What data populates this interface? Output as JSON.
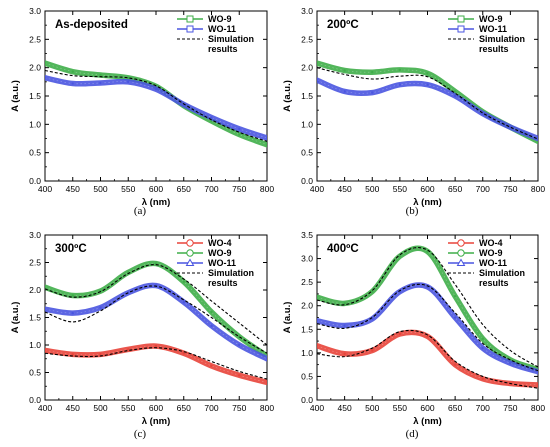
{
  "colors": {
    "WO-4": "#e8443a",
    "WO-9": "#3fae49",
    "WO-11": "#4a55e0",
    "sim": "#000000"
  },
  "chart_data": [
    {
      "type": "line",
      "caption": "(a)",
      "title": "As-deposited",
      "xlabel": "λ (nm)",
      "ylabel": "A (a.u.)",
      "xlim": [
        400,
        800
      ],
      "ylim": [
        0.0,
        3.0
      ],
      "xticks": [
        "400",
        "450",
        "500",
        "550",
        "600",
        "650",
        "700",
        "750",
        "800"
      ],
      "yticks": [
        "0.0",
        "0.5",
        "1.0",
        "1.5",
        "2.0",
        "2.5",
        "3.0"
      ],
      "legend_position": "top-right",
      "legend": [
        {
          "label": "WO-9",
          "key": "WO-9",
          "marker": "square"
        },
        {
          "label": "WO-11",
          "key": "WO-11",
          "marker": "square"
        },
        {
          "label": "Simulation results",
          "lines": [
            "Simulation",
            "results"
          ],
          "key": "sim",
          "marker": "dash"
        }
      ],
      "x": [
        400,
        450,
        500,
        550,
        600,
        650,
        700,
        750,
        800
      ],
      "series": [
        {
          "name": "WO-9",
          "key": "WO-9",
          "values": [
            2.08,
            1.93,
            1.87,
            1.82,
            1.67,
            1.33,
            1.06,
            0.82,
            0.64
          ]
        },
        {
          "name": "WO-11",
          "key": "WO-11",
          "values": [
            1.82,
            1.72,
            1.73,
            1.75,
            1.62,
            1.35,
            1.12,
            0.92,
            0.76
          ]
        },
        {
          "name": "Simulation results",
          "key": "sim",
          "dashed": true,
          "values": [
            1.95,
            1.86,
            1.84,
            1.82,
            1.68,
            1.36,
            1.08,
            0.86,
            0.7
          ]
        }
      ]
    },
    {
      "type": "line",
      "caption": "(b)",
      "title": "200ºC",
      "xlabel": "λ (nm)",
      "ylabel": "A (a.u.)",
      "xlim": [
        400,
        800
      ],
      "ylim": [
        0.0,
        3.0
      ],
      "xticks": [
        "400",
        "450",
        "500",
        "550",
        "600",
        "650",
        "700",
        "750",
        "800"
      ],
      "yticks": [
        "0.0",
        "0.5",
        "1.0",
        "1.5",
        "2.0",
        "2.5",
        "3.0"
      ],
      "legend_position": "top-right",
      "legend": [
        {
          "label": "WO-9",
          "key": "WO-9",
          "marker": "square"
        },
        {
          "label": "WO-11",
          "key": "WO-11",
          "marker": "square"
        },
        {
          "label": "Simulation results",
          "lines": [
            "Simulation",
            "results"
          ],
          "key": "sim",
          "marker": "dash"
        }
      ],
      "x": [
        400,
        450,
        500,
        550,
        600,
        650,
        700,
        750,
        800
      ],
      "series": [
        {
          "name": "WO-9",
          "key": "WO-9",
          "values": [
            2.08,
            1.95,
            1.92,
            1.96,
            1.9,
            1.58,
            1.22,
            0.95,
            0.7
          ]
        },
        {
          "name": "WO-11",
          "key": "WO-11",
          "values": [
            1.78,
            1.58,
            1.56,
            1.7,
            1.7,
            1.5,
            1.19,
            0.95,
            0.75
          ]
        },
        {
          "name": "Simulation results",
          "key": "sim",
          "dashed": true,
          "values": [
            2.0,
            1.88,
            1.8,
            1.85,
            1.84,
            1.55,
            1.2,
            0.95,
            0.74
          ]
        }
      ]
    },
    {
      "type": "line",
      "caption": "(c)",
      "title": "300ºC",
      "xlabel": "λ (nm)",
      "ylabel": "A (a.u.)",
      "xlim": [
        400,
        800
      ],
      "ylim": [
        0.0,
        3.0
      ],
      "xticks": [
        "400",
        "450",
        "500",
        "550",
        "600",
        "650",
        "700",
        "750",
        "800"
      ],
      "yticks": [
        "0.0",
        "0.5",
        "1.0",
        "1.5",
        "2.0",
        "2.5",
        "3.0"
      ],
      "legend_position": "top-right",
      "legend": [
        {
          "label": "WO-4",
          "key": "WO-4",
          "marker": "circle"
        },
        {
          "label": "WO-9",
          "key": "WO-9",
          "marker": "circle"
        },
        {
          "label": "WO-11",
          "key": "WO-11",
          "marker": "triangle"
        },
        {
          "label": "Simulation results",
          "lines": [
            "Simulation",
            "results"
          ],
          "key": "sim",
          "marker": "dash"
        }
      ],
      "x": [
        400,
        450,
        500,
        550,
        600,
        650,
        700,
        750,
        800
      ],
      "series": [
        {
          "name": "WO-4",
          "key": "WO-4",
          "values": [
            0.9,
            0.83,
            0.83,
            0.92,
            0.98,
            0.85,
            0.62,
            0.45,
            0.32
          ]
        },
        {
          "name": "WO-9",
          "key": "WO-9",
          "values": [
            2.05,
            1.9,
            1.98,
            2.32,
            2.48,
            2.15,
            1.6,
            1.15,
            0.8
          ]
        },
        {
          "name": "WO-11",
          "key": "WO-11",
          "values": [
            1.65,
            1.58,
            1.68,
            1.95,
            2.08,
            1.78,
            1.35,
            1.0,
            0.75
          ]
        },
        {
          "name": "Simulation results",
          "key": "sim",
          "dashed": true,
          "values": [
            0.85,
            0.8,
            0.8,
            0.9,
            0.95,
            0.88,
            0.7,
            0.52,
            0.38
          ]
        },
        {
          "name": "Simulation results",
          "key": "sim",
          "dashed": true,
          "values": [
            2.02,
            1.87,
            1.97,
            2.3,
            2.46,
            2.2,
            1.8,
            1.4,
            1.0
          ]
        },
        {
          "name": "Simulation results",
          "key": "sim",
          "dashed": true,
          "values": [
            1.6,
            1.42,
            1.62,
            1.95,
            2.07,
            1.82,
            1.5,
            1.15,
            0.85
          ]
        }
      ]
    },
    {
      "type": "line",
      "caption": "(d)",
      "title": "400ºC",
      "xlabel": "λ (nm)",
      "ylabel": "A (a.u.)",
      "xlim": [
        400,
        800
      ],
      "ylim": [
        0.0,
        3.5
      ],
      "xticks": [
        "400",
        "450",
        "500",
        "550",
        "600",
        "650",
        "700",
        "750",
        "800"
      ],
      "yticks": [
        "0.0",
        "0.5",
        "1.0",
        "1.5",
        "2.0",
        "2.5",
        "3.0",
        "3.5"
      ],
      "legend_position": "top-right",
      "legend": [
        {
          "label": "WO-4",
          "key": "WO-4",
          "marker": "circle"
        },
        {
          "label": "WO-9",
          "key": "WO-9",
          "marker": "circle"
        },
        {
          "label": "WO-11",
          "key": "WO-11",
          "marker": "triangle"
        },
        {
          "label": "Simulation results",
          "lines": [
            "Simulation",
            "results"
          ],
          "key": "sim",
          "marker": "dash"
        }
      ],
      "x": [
        400,
        450,
        500,
        550,
        600,
        650,
        700,
        750,
        800
      ],
      "series": [
        {
          "name": "WO-4",
          "key": "WO-4",
          "values": [
            1.15,
            0.98,
            1.05,
            1.4,
            1.35,
            0.75,
            0.45,
            0.35,
            0.32
          ]
        },
        {
          "name": "WO-9",
          "key": "WO-9",
          "values": [
            2.18,
            2.05,
            2.3,
            3.05,
            3.15,
            2.2,
            1.3,
            0.85,
            0.65
          ]
        },
        {
          "name": "WO-11",
          "key": "WO-11",
          "values": [
            1.68,
            1.58,
            1.72,
            2.3,
            2.4,
            1.75,
            1.1,
            0.78,
            0.6
          ]
        },
        {
          "name": "Simulation results",
          "key": "sim",
          "dashed": true,
          "values": [
            0.98,
            0.92,
            1.1,
            1.45,
            1.38,
            0.82,
            0.5,
            0.35,
            0.25
          ]
        },
        {
          "name": "Simulation results",
          "key": "sim",
          "dashed": true,
          "values": [
            2.12,
            2.02,
            2.32,
            3.08,
            3.18,
            2.45,
            1.6,
            1.05,
            0.7
          ]
        },
        {
          "name": "Simulation results",
          "key": "sim",
          "dashed": true,
          "values": [
            1.62,
            1.52,
            1.75,
            2.32,
            2.42,
            1.85,
            1.2,
            0.85,
            0.62
          ]
        }
      ]
    }
  ]
}
